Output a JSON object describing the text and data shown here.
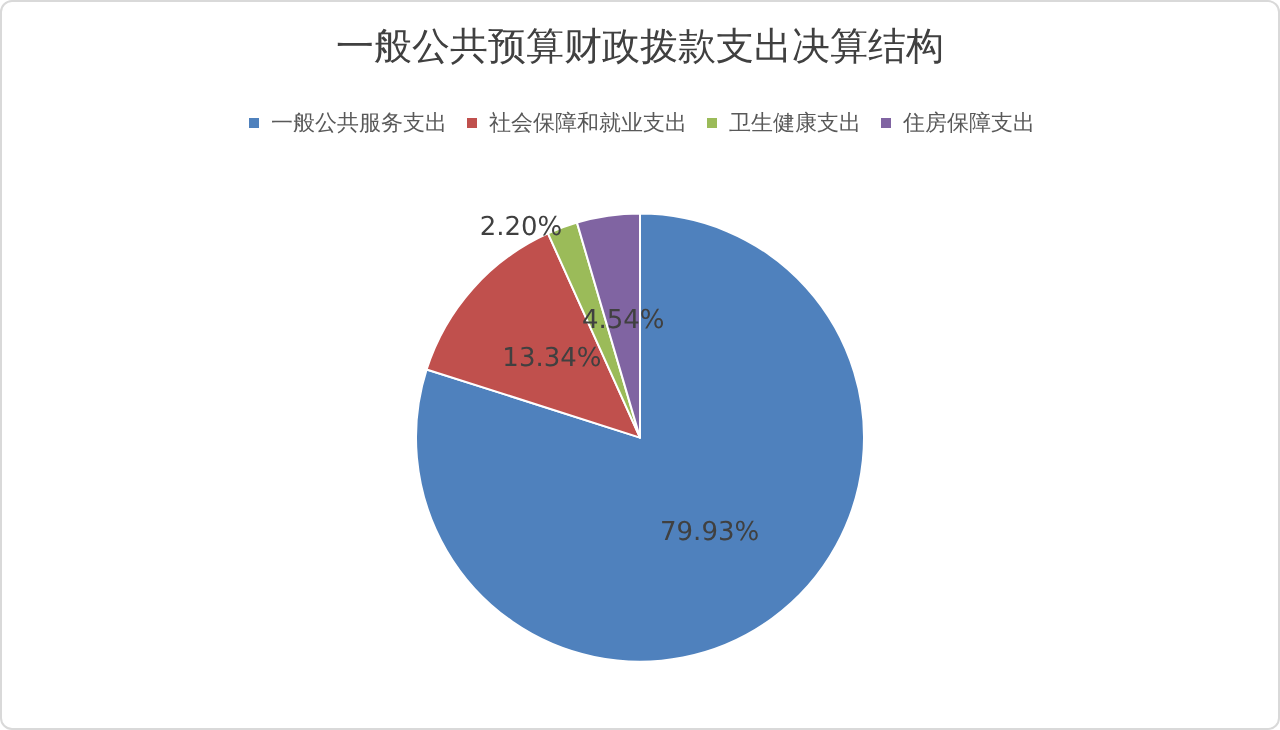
{
  "chart_data": {
    "type": "pie",
    "title": "一般公共预算财政拨款支出决算结构",
    "categories": [
      "一般公共服务支出",
      "社会保障和就业支出",
      "卫生健康支出",
      "住房保障支出"
    ],
    "values": [
      79.93,
      13.34,
      2.2,
      4.54
    ],
    "colors": [
      "#4f81bd",
      "#c0504d",
      "#9bbb59",
      "#8064a2"
    ],
    "value_labels": [
      "79.93%",
      "13.34%",
      "2.20%",
      "4.54%"
    ],
    "legend": "top"
  }
}
